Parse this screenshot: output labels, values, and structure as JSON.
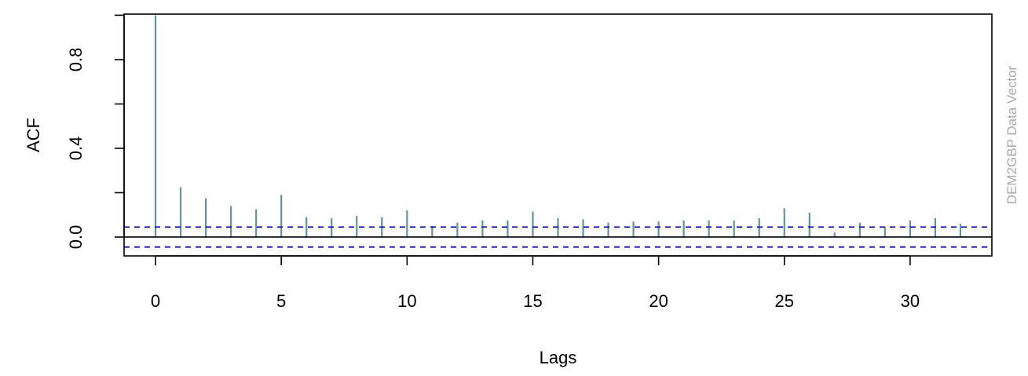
{
  "chart_data": {
    "type": "bar",
    "subtype": "acf-spike",
    "xlabel": "Lags",
    "ylabel": "ACF",
    "side_label": "DEM2GBP Data Vector",
    "xlim": [
      -1.25,
      33.25
    ],
    "ylim": [
      -0.085,
      1.005
    ],
    "x_ticks": [
      0,
      5,
      10,
      15,
      20,
      25,
      30
    ],
    "y_ticks": [
      0.0,
      0.4,
      0.8
    ],
    "y_tick_labels": [
      "0.0",
      "0.4",
      "0.8"
    ],
    "x": [
      0,
      1,
      2,
      3,
      4,
      5,
      6,
      7,
      8,
      9,
      10,
      11,
      12,
      13,
      14,
      15,
      16,
      17,
      18,
      19,
      20,
      21,
      22,
      23,
      24,
      25,
      26,
      27,
      28,
      29,
      30,
      31,
      32
    ],
    "values": [
      1.0,
      0.225,
      0.175,
      0.14,
      0.125,
      0.19,
      0.09,
      0.085,
      0.095,
      0.09,
      0.12,
      0.05,
      0.065,
      0.075,
      0.075,
      0.115,
      0.085,
      0.08,
      0.065,
      0.07,
      0.07,
      0.075,
      0.075,
      0.075,
      0.085,
      0.13,
      0.11,
      0.02,
      0.065,
      0.045,
      0.075,
      0.085,
      0.06
    ],
    "conf_bounds": [
      0.045,
      -0.045
    ],
    "zero_line": 0,
    "colors": {
      "spikes": "#5f93a8",
      "conf_lines": "#1010dd",
      "axes": "#000000",
      "side_label": "#aaaaaa"
    }
  }
}
